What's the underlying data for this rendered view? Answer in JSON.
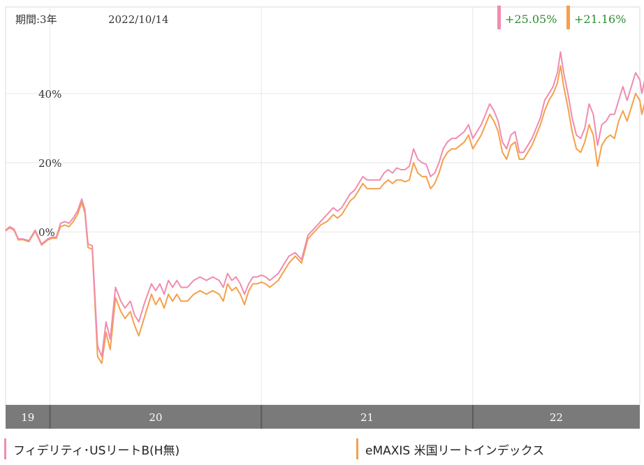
{
  "header": {
    "period_label": "期間:3年",
    "date_label": "2022/10/14"
  },
  "badges": [
    {
      "text": "+25.05%",
      "color": "#f08cb0"
    },
    {
      "text": "+21.16%",
      "color": "#f5a04a"
    }
  ],
  "colors": {
    "series1": "#f08cb0",
    "series2": "#f5a04a",
    "badge_text": "#2e8b2e",
    "grid": "#e6e6e6",
    "axis_bar": "#7a7a7a"
  },
  "legend": [
    {
      "label": "フィデリティ･USリートB(H無)",
      "color": "#f08cb0"
    },
    {
      "label": "eMAXIS 米国リートインデックス",
      "color": "#f5a04a"
    }
  ],
  "chart_data": {
    "type": "line",
    "x_range": [
      2019.79,
      2022.79
    ],
    "ylim": [
      -50,
      65
    ],
    "y_ticks": [
      0,
      20,
      40
    ],
    "y_tick_labels": [
      "0%",
      "20%",
      "40%"
    ],
    "x_ticks": [
      2019,
      2020,
      2021,
      2022
    ],
    "x_tick_labels": [
      "19",
      "20",
      "21",
      "22"
    ],
    "grid": true,
    "series": [
      {
        "name": "フィデリティ･USリートB(H無)",
        "points": [
          [
            2019.79,
            0.5
          ],
          [
            2019.81,
            1.5
          ],
          [
            2019.83,
            0.8
          ],
          [
            2019.85,
            -2
          ],
          [
            2019.87,
            -2
          ],
          [
            2019.9,
            -2.5
          ],
          [
            2019.93,
            0.5
          ],
          [
            2019.96,
            -3.5
          ],
          [
            2019.99,
            -2
          ],
          [
            2020.01,
            -1.5
          ],
          [
            2020.03,
            -1.5
          ],
          [
            2020.05,
            2.5
          ],
          [
            2020.07,
            3
          ],
          [
            2020.09,
            2.5
          ],
          [
            2020.11,
            4
          ],
          [
            2020.13,
            6
          ],
          [
            2020.15,
            9.5
          ],
          [
            2020.165,
            6.5
          ],
          [
            2020.18,
            -3.5
          ],
          [
            2020.2,
            -4
          ],
          [
            2020.225,
            -33
          ],
          [
            2020.245,
            -36
          ],
          [
            2020.265,
            -26
          ],
          [
            2020.285,
            -31
          ],
          [
            2020.31,
            -16
          ],
          [
            2020.335,
            -20
          ],
          [
            2020.355,
            -22
          ],
          [
            2020.38,
            -20
          ],
          [
            2020.4,
            -24
          ],
          [
            2020.42,
            -26
          ],
          [
            2020.45,
            -20
          ],
          [
            2020.48,
            -15
          ],
          [
            2020.5,
            -17
          ],
          [
            2020.52,
            -15
          ],
          [
            2020.54,
            -18
          ],
          [
            2020.56,
            -14
          ],
          [
            2020.58,
            -16
          ],
          [
            2020.6,
            -14
          ],
          [
            2020.62,
            -16
          ],
          [
            2020.65,
            -16
          ],
          [
            2020.68,
            -14
          ],
          [
            2020.71,
            -13
          ],
          [
            2020.74,
            -14
          ],
          [
            2020.77,
            -13
          ],
          [
            2020.8,
            -14
          ],
          [
            2020.82,
            -16
          ],
          [
            2020.84,
            -12
          ],
          [
            2020.86,
            -14
          ],
          [
            2020.88,
            -13
          ],
          [
            2020.9,
            -15
          ],
          [
            2020.92,
            -18
          ],
          [
            2020.94,
            -15
          ],
          [
            2020.96,
            -13
          ],
          [
            2020.98,
            -13
          ],
          [
            2021.0,
            -12.5
          ],
          [
            2021.02,
            -13
          ],
          [
            2021.04,
            -14
          ],
          [
            2021.06,
            -13
          ],
          [
            2021.08,
            -12
          ],
          [
            2021.1,
            -10
          ],
          [
            2021.13,
            -7
          ],
          [
            2021.16,
            -6
          ],
          [
            2021.19,
            -8
          ],
          [
            2021.22,
            -1
          ],
          [
            2021.25,
            1
          ],
          [
            2021.28,
            3
          ],
          [
            2021.31,
            5
          ],
          [
            2021.34,
            7
          ],
          [
            2021.36,
            6
          ],
          [
            2021.38,
            7
          ],
          [
            2021.4,
            9
          ],
          [
            2021.42,
            11
          ],
          [
            2021.44,
            12
          ],
          [
            2021.46,
            14
          ],
          [
            2021.48,
            16
          ],
          [
            2021.5,
            15
          ],
          [
            2021.53,
            15
          ],
          [
            2021.56,
            15
          ],
          [
            2021.58,
            17
          ],
          [
            2021.6,
            18
          ],
          [
            2021.62,
            17
          ],
          [
            2021.64,
            18.5
          ],
          [
            2021.66,
            18
          ],
          [
            2021.68,
            18
          ],
          [
            2021.7,
            19
          ],
          [
            2021.72,
            24
          ],
          [
            2021.74,
            21
          ],
          [
            2021.76,
            20
          ],
          [
            2021.78,
            19.5
          ],
          [
            2021.8,
            16
          ],
          [
            2021.82,
            17
          ],
          [
            2021.84,
            20
          ],
          [
            2021.86,
            24
          ],
          [
            2021.88,
            26
          ],
          [
            2021.9,
            27
          ],
          [
            2021.92,
            27
          ],
          [
            2021.94,
            28
          ],
          [
            2021.96,
            29
          ],
          [
            2021.98,
            31
          ],
          [
            2022.0,
            27
          ],
          [
            2022.02,
            29
          ],
          [
            2022.04,
            31
          ],
          [
            2022.06,
            34
          ],
          [
            2022.08,
            37
          ],
          [
            2022.1,
            35
          ],
          [
            2022.12,
            32
          ],
          [
            2022.14,
            26
          ],
          [
            2022.16,
            24
          ],
          [
            2022.18,
            28
          ],
          [
            2022.2,
            29
          ],
          [
            2022.22,
            23
          ],
          [
            2022.24,
            23
          ],
          [
            2022.26,
            25
          ],
          [
            2022.28,
            27
          ],
          [
            2022.3,
            30
          ],
          [
            2022.32,
            33
          ],
          [
            2022.34,
            38
          ],
          [
            2022.36,
            40
          ],
          [
            2022.38,
            42
          ],
          [
            2022.4,
            46
          ],
          [
            2022.415,
            52
          ],
          [
            2022.43,
            46
          ],
          [
            2022.45,
            40
          ],
          [
            2022.47,
            33
          ],
          [
            2022.49,
            28
          ],
          [
            2022.51,
            27
          ],
          [
            2022.53,
            30
          ],
          [
            2022.55,
            37
          ],
          [
            2022.57,
            34
          ],
          [
            2022.59,
            25
          ],
          [
            2022.61,
            31
          ],
          [
            2022.63,
            32
          ],
          [
            2022.65,
            34
          ],
          [
            2022.67,
            34
          ],
          [
            2022.69,
            38
          ],
          [
            2022.71,
            42
          ],
          [
            2022.73,
            38
          ],
          [
            2022.75,
            42
          ],
          [
            2022.77,
            46
          ],
          [
            2022.79,
            44
          ],
          [
            2022.8,
            40
          ],
          [
            2022.82,
            46
          ],
          [
            2022.84,
            40
          ],
          [
            2022.86,
            30
          ],
          [
            2022.88,
            25
          ],
          [
            2022.91,
            25
          ],
          [
            2022.92,
            25.05
          ]
        ]
      },
      {
        "name": "eMAXIS 米国リートインデックス",
        "points": [
          [
            2019.79,
            0.3
          ],
          [
            2019.81,
            1.2
          ],
          [
            2019.83,
            0.5
          ],
          [
            2019.85,
            -2.3
          ],
          [
            2019.87,
            -2.2
          ],
          [
            2019.9,
            -2.8
          ],
          [
            2019.93,
            0.2
          ],
          [
            2019.96,
            -3.8
          ],
          [
            2019.99,
            -2.3
          ],
          [
            2020.01,
            -1.8
          ],
          [
            2020.03,
            -1.8
          ],
          [
            2020.05,
            1.5
          ],
          [
            2020.07,
            2
          ],
          [
            2020.09,
            1.5
          ],
          [
            2020.11,
            3
          ],
          [
            2020.13,
            5
          ],
          [
            2020.15,
            8.5
          ],
          [
            2020.165,
            5.5
          ],
          [
            2020.18,
            -4.5
          ],
          [
            2020.2,
            -5
          ],
          [
            2020.225,
            -36
          ],
          [
            2020.245,
            -38
          ],
          [
            2020.265,
            -29
          ],
          [
            2020.285,
            -34
          ],
          [
            2020.31,
            -19
          ],
          [
            2020.335,
            -23
          ],
          [
            2020.355,
            -25
          ],
          [
            2020.38,
            -23
          ],
          [
            2020.4,
            -27
          ],
          [
            2020.42,
            -30
          ],
          [
            2020.45,
            -24
          ],
          [
            2020.48,
            -18
          ],
          [
            2020.5,
            -21
          ],
          [
            2020.52,
            -19
          ],
          [
            2020.54,
            -22
          ],
          [
            2020.56,
            -18
          ],
          [
            2020.58,
            -20
          ],
          [
            2020.6,
            -18
          ],
          [
            2020.62,
            -20
          ],
          [
            2020.65,
            -20
          ],
          [
            2020.68,
            -18
          ],
          [
            2020.71,
            -17
          ],
          [
            2020.74,
            -18
          ],
          [
            2020.77,
            -17
          ],
          [
            2020.8,
            -18
          ],
          [
            2020.82,
            -20
          ],
          [
            2020.84,
            -15
          ],
          [
            2020.86,
            -17
          ],
          [
            2020.88,
            -16
          ],
          [
            2020.9,
            -18
          ],
          [
            2020.92,
            -21
          ],
          [
            2020.94,
            -17
          ],
          [
            2020.96,
            -15
          ],
          [
            2020.98,
            -15
          ],
          [
            2021.0,
            -14.5
          ],
          [
            2021.02,
            -15
          ],
          [
            2021.04,
            -16
          ],
          [
            2021.06,
            -15
          ],
          [
            2021.08,
            -14
          ],
          [
            2021.1,
            -12
          ],
          [
            2021.13,
            -9
          ],
          [
            2021.16,
            -7
          ],
          [
            2021.19,
            -9
          ],
          [
            2021.22,
            -2
          ],
          [
            2021.25,
            0
          ],
          [
            2021.28,
            2
          ],
          [
            2021.31,
            3
          ],
          [
            2021.34,
            5
          ],
          [
            2021.36,
            4
          ],
          [
            2021.38,
            5
          ],
          [
            2021.4,
            7
          ],
          [
            2021.42,
            9
          ],
          [
            2021.44,
            10
          ],
          [
            2021.46,
            12
          ],
          [
            2021.48,
            14
          ],
          [
            2021.5,
            12.5
          ],
          [
            2021.53,
            12.5
          ],
          [
            2021.56,
            12.5
          ],
          [
            2021.58,
            14
          ],
          [
            2021.6,
            15
          ],
          [
            2021.62,
            14
          ],
          [
            2021.64,
            15
          ],
          [
            2021.66,
            15
          ],
          [
            2021.68,
            14.5
          ],
          [
            2021.7,
            15
          ],
          [
            2021.72,
            20
          ],
          [
            2021.74,
            17
          ],
          [
            2021.76,
            16
          ],
          [
            2021.78,
            16
          ],
          [
            2021.8,
            12.5
          ],
          [
            2021.82,
            14
          ],
          [
            2021.84,
            17
          ],
          [
            2021.86,
            21
          ],
          [
            2021.88,
            23
          ],
          [
            2021.9,
            24
          ],
          [
            2021.92,
            24
          ],
          [
            2021.94,
            25
          ],
          [
            2021.96,
            26
          ],
          [
            2021.98,
            28
          ],
          [
            2022.0,
            24
          ],
          [
            2022.02,
            26
          ],
          [
            2022.04,
            28
          ],
          [
            2022.06,
            31
          ],
          [
            2022.08,
            34
          ],
          [
            2022.1,
            32
          ],
          [
            2022.12,
            29
          ],
          [
            2022.14,
            23
          ],
          [
            2022.16,
            21
          ],
          [
            2022.18,
            25
          ],
          [
            2022.2,
            26
          ],
          [
            2022.22,
            21
          ],
          [
            2022.24,
            21
          ],
          [
            2022.26,
            23
          ],
          [
            2022.28,
            25
          ],
          [
            2022.3,
            28
          ],
          [
            2022.32,
            31
          ],
          [
            2022.34,
            35
          ],
          [
            2022.36,
            38
          ],
          [
            2022.38,
            40
          ],
          [
            2022.4,
            43
          ],
          [
            2022.415,
            48
          ],
          [
            2022.43,
            42
          ],
          [
            2022.45,
            36
          ],
          [
            2022.47,
            29
          ],
          [
            2022.49,
            24
          ],
          [
            2022.51,
            23
          ],
          [
            2022.53,
            26
          ],
          [
            2022.55,
            31
          ],
          [
            2022.57,
            28
          ],
          [
            2022.59,
            19
          ],
          [
            2022.61,
            25
          ],
          [
            2022.63,
            27
          ],
          [
            2022.65,
            28
          ],
          [
            2022.67,
            27
          ],
          [
            2022.69,
            32
          ],
          [
            2022.71,
            35
          ],
          [
            2022.73,
            32
          ],
          [
            2022.75,
            36
          ],
          [
            2022.77,
            40
          ],
          [
            2022.79,
            38
          ],
          [
            2022.8,
            34
          ],
          [
            2022.82,
            39
          ],
          [
            2022.84,
            33
          ],
          [
            2022.86,
            28
          ],
          [
            2022.88,
            20
          ],
          [
            2022.91,
            20.5
          ],
          [
            2022.92,
            21.16
          ]
        ]
      }
    ]
  }
}
